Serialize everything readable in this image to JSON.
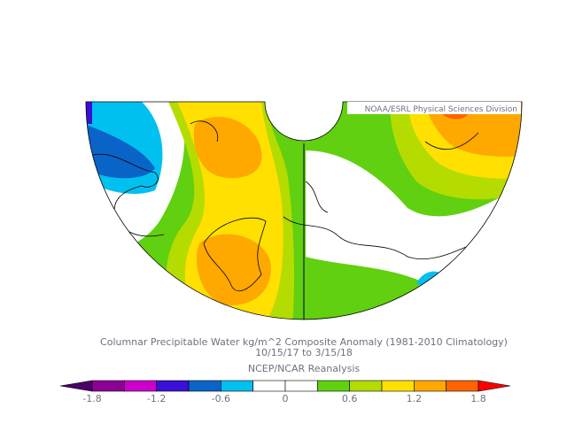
{
  "header": {
    "title": "Columnar Precipitable Water kg/m^2 Composite Anomaly (1981-2010 Climatology)",
    "dates": "10/15/17  to 3/15/18",
    "source": "NCEP/NCAR Reanalysis"
  },
  "credit": "NOAA/ESRL Physical Sciences Division",
  "colorbar": {
    "labels": [
      "-1.8",
      "-1.2",
      "-0.6",
      "0",
      "0.6",
      "1.2",
      "1.8"
    ],
    "colors": [
      "#4a0068",
      "#8c0096",
      "#cc00cc",
      "#3a10d8",
      "#0a64c8",
      "#00c0f0",
      "#ffffff",
      "#ffffff",
      "#60d010",
      "#b4dc00",
      "#ffe000",
      "#ffa800",
      "#ff6400",
      "#ff0000"
    ]
  }
}
